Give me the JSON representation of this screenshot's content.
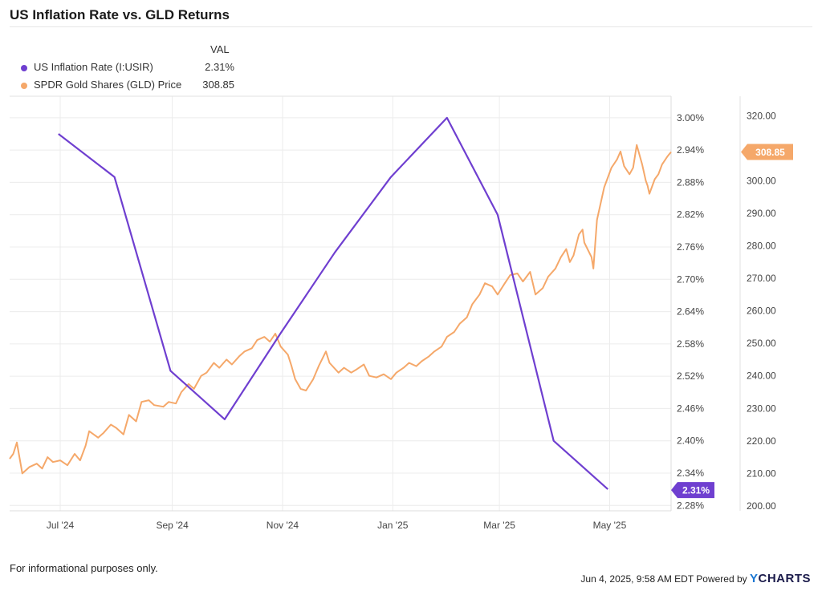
{
  "header": {
    "title": "US Inflation Rate vs. GLD Returns"
  },
  "legend": {
    "value_header": "VAL",
    "items": [
      {
        "label": "US Inflation Rate (I:USIR)",
        "value": "2.31%",
        "color": "#6f3fd0"
      },
      {
        "label": "SPDR Gold Shares (GLD) Price",
        "value": "308.85",
        "color": "#f5a86a"
      }
    ]
  },
  "footer": {
    "disclaimer": "For informational purposes only.",
    "timestamp": "Jun 4, 2025, 9:58 AM EDT Powered by",
    "brand_y": "Y",
    "brand_rest": "CHARTS"
  },
  "chart_data": {
    "type": "line",
    "x_tick_labels": [
      "Jul '24",
      "Sep '24",
      "Nov '24",
      "Jan '25",
      "Mar '25",
      "May '25"
    ],
    "x_tick_dates": [
      "2024-07-01",
      "2024-09-01",
      "2024-11-01",
      "2025-01-01",
      "2025-03-01",
      "2025-05-01"
    ],
    "x_range": [
      "2024-06-03",
      "2025-06-04"
    ],
    "y_left": {
      "range": [
        2.27,
        3.04
      ],
      "ticks": [
        "3.00%",
        "2.94%",
        "2.88%",
        "2.82%",
        "2.76%",
        "2.70%",
        "2.64%",
        "2.58%",
        "2.52%",
        "2.46%",
        "2.40%",
        "2.34%",
        "2.28%"
      ],
      "tick_values": [
        3.0,
        2.94,
        2.88,
        2.82,
        2.76,
        2.7,
        2.64,
        2.58,
        2.52,
        2.46,
        2.4,
        2.34,
        2.28
      ]
    },
    "y_right": {
      "range": [
        198.5,
        326
      ],
      "ticks": [
        "320.00",
        "310.00",
        "300.00",
        "290.00",
        "280.00",
        "270.00",
        "260.00",
        "250.00",
        "240.00",
        "230.00",
        "220.00",
        "210.00",
        "200.00"
      ],
      "tick_values": [
        320,
        310,
        300,
        290,
        280,
        270,
        260,
        250,
        240,
        230,
        220,
        210,
        200
      ]
    },
    "series": [
      {
        "name": "US Inflation Rate (I:USIR)",
        "axis": "left",
        "color": "#6f3fd0",
        "end_label": "2.31%",
        "points": [
          [
            "2024-06-30",
            2.97
          ],
          [
            "2024-07-31",
            2.89
          ],
          [
            "2024-08-31",
            2.53
          ],
          [
            "2024-09-30",
            2.44
          ],
          [
            "2024-10-31",
            2.6
          ],
          [
            "2024-11-30",
            2.75
          ],
          [
            "2024-12-31",
            2.89
          ],
          [
            "2025-01-31",
            3.0
          ],
          [
            "2025-02-28",
            2.82
          ],
          [
            "2025-03-31",
            2.4
          ],
          [
            "2025-04-30",
            2.31
          ]
        ]
      },
      {
        "name": "SPDR Gold Shares (GLD) Price",
        "axis": "right",
        "color": "#f5a86a",
        "end_label": "308.85",
        "points": [
          [
            "2024-06-03",
            214.5
          ],
          [
            "2024-06-05",
            216.0
          ],
          [
            "2024-06-07",
            219.5
          ],
          [
            "2024-06-10",
            210.0
          ],
          [
            "2024-06-14",
            212.0
          ],
          [
            "2024-06-18",
            213.0
          ],
          [
            "2024-06-21",
            211.5
          ],
          [
            "2024-06-24",
            215.0
          ],
          [
            "2024-06-27",
            213.5
          ],
          [
            "2024-07-01",
            214.0
          ],
          [
            "2024-07-05",
            212.5
          ],
          [
            "2024-07-09",
            216.0
          ],
          [
            "2024-07-12",
            214.0
          ],
          [
            "2024-07-15",
            218.5
          ],
          [
            "2024-07-17",
            223.0
          ],
          [
            "2024-07-22",
            221.0
          ],
          [
            "2024-07-25",
            222.5
          ],
          [
            "2024-07-29",
            225.0
          ],
          [
            "2024-08-01",
            224.0
          ],
          [
            "2024-08-05",
            222.0
          ],
          [
            "2024-08-08",
            228.0
          ],
          [
            "2024-08-12",
            226.0
          ],
          [
            "2024-08-15",
            232.0
          ],
          [
            "2024-08-19",
            232.5
          ],
          [
            "2024-08-22",
            231.0
          ],
          [
            "2024-08-27",
            230.5
          ],
          [
            "2024-08-30",
            232.0
          ],
          [
            "2024-09-03",
            231.5
          ],
          [
            "2024-09-06",
            235.0
          ],
          [
            "2024-09-10",
            237.5
          ],
          [
            "2024-09-13",
            236.0
          ],
          [
            "2024-09-17",
            240.0
          ],
          [
            "2024-09-20",
            241.0
          ],
          [
            "2024-09-24",
            244.0
          ],
          [
            "2024-09-27",
            242.5
          ],
          [
            "2024-10-01",
            245.0
          ],
          [
            "2024-10-04",
            243.5
          ],
          [
            "2024-10-08",
            246.0
          ],
          [
            "2024-10-11",
            247.5
          ],
          [
            "2024-10-15",
            248.5
          ],
          [
            "2024-10-18",
            251.0
          ],
          [
            "2024-10-22",
            252.0
          ],
          [
            "2024-10-25",
            250.5
          ],
          [
            "2024-10-28",
            253.0
          ],
          [
            "2024-10-31",
            249.0
          ],
          [
            "2024-11-04",
            246.5
          ],
          [
            "2024-11-06",
            243.0
          ],
          [
            "2024-11-08",
            239.0
          ],
          [
            "2024-11-11",
            236.0
          ],
          [
            "2024-11-14",
            235.5
          ],
          [
            "2024-11-18",
            239.0
          ],
          [
            "2024-11-21",
            243.0
          ],
          [
            "2024-11-25",
            247.5
          ],
          [
            "2024-11-27",
            244.0
          ],
          [
            "2024-12-02",
            241.0
          ],
          [
            "2024-12-05",
            242.5
          ],
          [
            "2024-12-09",
            241.0
          ],
          [
            "2024-12-12",
            242.0
          ],
          [
            "2024-12-16",
            243.5
          ],
          [
            "2024-12-19",
            240.0
          ],
          [
            "2024-12-23",
            239.5
          ],
          [
            "2024-12-27",
            240.5
          ],
          [
            "2024-12-31",
            239.0
          ],
          [
            "2025-01-03",
            241.0
          ],
          [
            "2025-01-07",
            242.5
          ],
          [
            "2025-01-10",
            244.0
          ],
          [
            "2025-01-14",
            243.0
          ],
          [
            "2025-01-17",
            244.5
          ],
          [
            "2025-01-21",
            246.0
          ],
          [
            "2025-01-24",
            247.5
          ],
          [
            "2025-01-28",
            249.0
          ],
          [
            "2025-01-31",
            252.0
          ],
          [
            "2025-02-04",
            253.5
          ],
          [
            "2025-02-07",
            256.0
          ],
          [
            "2025-02-11",
            258.0
          ],
          [
            "2025-02-14",
            262.0
          ],
          [
            "2025-02-18",
            265.0
          ],
          [
            "2025-02-21",
            268.5
          ],
          [
            "2025-02-25",
            267.5
          ],
          [
            "2025-02-28",
            265.0
          ],
          [
            "2025-03-04",
            268.5
          ],
          [
            "2025-03-07",
            271.0
          ],
          [
            "2025-03-11",
            271.5
          ],
          [
            "2025-03-14",
            269.0
          ],
          [
            "2025-03-18",
            272.0
          ],
          [
            "2025-03-21",
            265.0
          ],
          [
            "2025-03-25",
            267.0
          ],
          [
            "2025-03-28",
            270.5
          ],
          [
            "2025-04-01",
            273.0
          ],
          [
            "2025-04-04",
            276.5
          ],
          [
            "2025-04-07",
            279.0
          ],
          [
            "2025-04-09",
            275.0
          ],
          [
            "2025-04-11",
            277.0
          ],
          [
            "2025-04-14",
            283.5
          ],
          [
            "2025-04-16",
            285.0
          ],
          [
            "2025-04-17",
            281.0
          ],
          [
            "2025-04-21",
            276.5
          ],
          [
            "2025-04-22",
            273.0
          ],
          [
            "2025-04-24",
            288.0
          ],
          [
            "2025-04-28",
            298.0
          ],
          [
            "2025-04-30",
            301.0
          ],
          [
            "2025-05-02",
            304.0
          ],
          [
            "2025-05-05",
            306.5
          ],
          [
            "2025-05-07",
            309.0
          ],
          [
            "2025-05-09",
            304.5
          ],
          [
            "2025-05-12",
            302.0
          ],
          [
            "2025-05-14",
            304.0
          ],
          [
            "2025-05-16",
            311.0
          ],
          [
            "2025-05-19",
            305.0
          ],
          [
            "2025-05-21",
            300.0
          ],
          [
            "2025-05-22",
            298.5
          ],
          [
            "2025-05-23",
            296.0
          ],
          [
            "2025-05-26",
            300.5
          ],
          [
            "2025-05-28",
            302.0
          ],
          [
            "2025-05-30",
            305.0
          ],
          [
            "2025-06-02",
            307.5
          ],
          [
            "2025-06-04",
            308.85
          ]
        ]
      }
    ]
  }
}
